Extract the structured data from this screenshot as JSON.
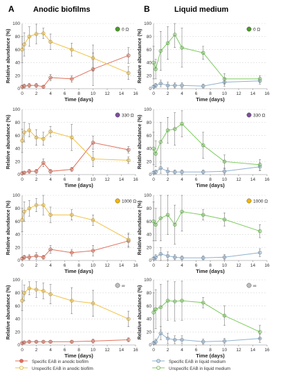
{
  "figure": {
    "panel_a": {
      "letter": "A",
      "title": "Anodic biofilms"
    },
    "panel_b": {
      "letter": "B",
      "title": "Liquid medium"
    },
    "xlabel": "Time (days)",
    "ylabel": "Relative abundance (%)",
    "xticks": [
      "0",
      "2",
      "4",
      "6",
      "8",
      "10",
      "12",
      "14",
      "16"
    ],
    "yticks": [
      "0",
      "20",
      "40",
      "60",
      "80",
      "100"
    ]
  },
  "colors": {
    "specific_anodic": "#e0705a",
    "unspecific_anodic": "#f0c040",
    "specific_liquid": "#8fb0cf",
    "unspecific_liquid": "#7ccb5e",
    "marker_0": "#4c9a2a",
    "marker_330": "#7b4f9e",
    "marker_1000": "#f2b705",
    "marker_inf": "#bdbdbd"
  },
  "legend": {
    "left": [
      "Specific EAB in anodic biofilm",
      "Unspecific EAB in anodic biofilm"
    ],
    "right": [
      "Specific EAB in liquid medium",
      "Unspecific EAB in liquid medium"
    ]
  },
  "chart_data": [
    {
      "type": "line",
      "panel": "A",
      "row": 0,
      "resistance_label": "0 Ω",
      "marker_color": "marker_0",
      "x": [
        0,
        0.3,
        1,
        2,
        3,
        4,
        7,
        10,
        15
      ],
      "xlim": [
        0,
        16
      ],
      "ylim": [
        0,
        100
      ],
      "series": [
        {
          "name": "Specific EAB in anodic biofilm",
          "color": "specific_anodic",
          "values": [
            3,
            4,
            5,
            5,
            3,
            17,
            15,
            30,
            51
          ],
          "errors": [
            2,
            3,
            3,
            3,
            2,
            5,
            5,
            25,
            12
          ]
        },
        {
          "name": "Unspecific EAB in anodic biofilm",
          "color": "unspecific_anodic",
          "values": [
            60,
            68,
            80,
            84,
            85,
            72,
            60,
            47,
            24
          ],
          "errors": [
            20,
            18,
            15,
            15,
            8,
            12,
            10,
            20,
            10
          ]
        }
      ]
    },
    {
      "type": "line",
      "panel": "A",
      "row": 1,
      "resistance_label": "330 Ω",
      "marker_color": "marker_330",
      "x": [
        0,
        0.3,
        1,
        2,
        3,
        4,
        7,
        10,
        15
      ],
      "xlim": [
        0,
        16
      ],
      "ylim": [
        0,
        100
      ],
      "series": [
        {
          "name": "Specific EAB in anodic biofilm",
          "color": "specific_anodic",
          "values": [
            2,
            3,
            5,
            5,
            18,
            5,
            8,
            49,
            38
          ],
          "errors": [
            2,
            2,
            3,
            3,
            6,
            3,
            3,
            10,
            5
          ]
        },
        {
          "name": "Unspecific EAB in anodic biofilm",
          "color": "unspecific_anodic",
          "values": [
            52,
            65,
            68,
            57,
            55,
            66,
            57,
            24,
            22
          ],
          "errors": [
            18,
            15,
            10,
            12,
            10,
            8,
            20,
            12,
            5
          ]
        }
      ]
    },
    {
      "type": "line",
      "panel": "A",
      "row": 2,
      "resistance_label": "1000 Ω",
      "marker_color": "marker_1000",
      "x": [
        0,
        0.3,
        1,
        2,
        3,
        4,
        7,
        10,
        15
      ],
      "xlim": [
        0,
        16
      ],
      "ylim": [
        0,
        100
      ],
      "series": [
        {
          "name": "Specific EAB in anodic biofilm",
          "color": "specific_anodic",
          "values": [
            3,
            5,
            5,
            7,
            5,
            17,
            12,
            15,
            30
          ],
          "errors": [
            2,
            3,
            4,
            5,
            3,
            6,
            5,
            8,
            10
          ]
        },
        {
          "name": "Unspecific EAB in anodic biofilm",
          "color": "unspecific_anodic",
          "values": [
            62,
            75,
            80,
            85,
            85,
            70,
            70,
            62,
            32
          ],
          "errors": [
            18,
            15,
            12,
            10,
            15,
            12,
            8,
            8,
            10
          ]
        }
      ]
    },
    {
      "type": "line",
      "panel": "A",
      "row": 3,
      "resistance_label": "∞",
      "marker_color": "marker_inf",
      "x": [
        0,
        0.3,
        1,
        2,
        3,
        4,
        7,
        10,
        15
      ],
      "xlim": [
        0,
        16
      ],
      "ylim": [
        0,
        100
      ],
      "series": [
        {
          "name": "Specific EAB in anodic biofilm",
          "color": "specific_anodic",
          "values": [
            3,
            4,
            5,
            5,
            5,
            5,
            5,
            6,
            8
          ],
          "errors": [
            1,
            2,
            2,
            2,
            2,
            2,
            2,
            3,
            3
          ]
        },
        {
          "name": "Unspecific EAB in anodic biofilm",
          "color": "unspecific_anodic",
          "values": [
            68,
            80,
            87,
            85,
            83,
            78,
            68,
            64,
            40
          ],
          "errors": [
            15,
            12,
            10,
            12,
            12,
            15,
            20,
            20,
            12
          ]
        }
      ]
    },
    {
      "type": "line",
      "panel": "B",
      "row": 0,
      "resistance_label": "0 Ω",
      "marker_color": "marker_0",
      "x": [
        0,
        0.3,
        1,
        2,
        3,
        4,
        7,
        10,
        15
      ],
      "xlim": [
        0,
        16
      ],
      "ylim": [
        0,
        100
      ],
      "series": [
        {
          "name": "Specific EAB in liquid medium",
          "color": "specific_liquid",
          "values": [
            3,
            5,
            8,
            5,
            5,
            5,
            4,
            10,
            12
          ],
          "errors": [
            2,
            3,
            5,
            5,
            4,
            4,
            3,
            6,
            5
          ]
        },
        {
          "name": "Unspecific EAB in liquid medium",
          "color": "unspecific_liquid",
          "values": [
            40,
            30,
            58,
            70,
            83,
            63,
            55,
            15,
            15
          ],
          "errors": [
            25,
            15,
            30,
            25,
            20,
            30,
            10,
            8,
            5
          ]
        }
      ]
    },
    {
      "type": "line",
      "panel": "B",
      "row": 1,
      "resistance_label": "330 Ω",
      "marker_color": "marker_330",
      "x": [
        0,
        0.3,
        1,
        2,
        3,
        4,
        7,
        10,
        15
      ],
      "xlim": [
        0,
        16
      ],
      "ylim": [
        0,
        100
      ],
      "series": [
        {
          "name": "Specific EAB in liquid medium",
          "color": "specific_liquid",
          "values": [
            3,
            4,
            10,
            5,
            4,
            4,
            4,
            5,
            12
          ],
          "errors": [
            2,
            3,
            8,
            5,
            3,
            3,
            3,
            4,
            6
          ]
        },
        {
          "name": "Unspecific EAB in liquid medium",
          "color": "unspecific_liquid",
          "values": [
            40,
            32,
            50,
            68,
            70,
            78,
            45,
            20,
            15
          ],
          "errors": [
            25,
            20,
            30,
            20,
            25,
            20,
            20,
            10,
            8
          ]
        }
      ]
    },
    {
      "type": "line",
      "panel": "B",
      "row": 2,
      "resistance_label": "1000 Ω",
      "marker_color": "marker_1000",
      "x": [
        0,
        0.3,
        1,
        2,
        3,
        4,
        7,
        10,
        15
      ],
      "xlim": [
        0,
        16
      ],
      "ylim": [
        0,
        100
      ],
      "series": [
        {
          "name": "Specific EAB in liquid medium",
          "color": "specific_liquid",
          "values": [
            3,
            5,
            10,
            7,
            5,
            4,
            4,
            5,
            12
          ],
          "errors": [
            2,
            4,
            10,
            6,
            4,
            3,
            3,
            4,
            6
          ]
        },
        {
          "name": "Unspecific EAB in liquid medium",
          "color": "unspecific_liquid",
          "values": [
            60,
            55,
            65,
            70,
            55,
            75,
            70,
            63,
            45
          ],
          "errors": [
            30,
            25,
            35,
            30,
            30,
            30,
            8,
            10,
            10
          ]
        }
      ]
    },
    {
      "type": "line",
      "panel": "B",
      "row": 3,
      "resistance_label": "∞",
      "marker_color": "marker_inf",
      "x": [
        0,
        0.3,
        1,
        2,
        3,
        4,
        7,
        10,
        15
      ],
      "xlim": [
        0,
        16
      ],
      "ylim": [
        0,
        100
      ],
      "series": [
        {
          "name": "Specific EAB in liquid medium",
          "color": "specific_liquid",
          "values": [
            3,
            5,
            18,
            10,
            8,
            8,
            5,
            6,
            10
          ],
          "errors": [
            2,
            4,
            10,
            8,
            6,
            6,
            4,
            4,
            6
          ]
        },
        {
          "name": "Unspecific EAB in liquid medium",
          "color": "unspecific_liquid",
          "values": [
            50,
            55,
            58,
            68,
            67,
            68,
            65,
            45,
            20
          ],
          "errors": [
            30,
            30,
            35,
            30,
            30,
            30,
            8,
            15,
            10
          ]
        }
      ]
    }
  ]
}
